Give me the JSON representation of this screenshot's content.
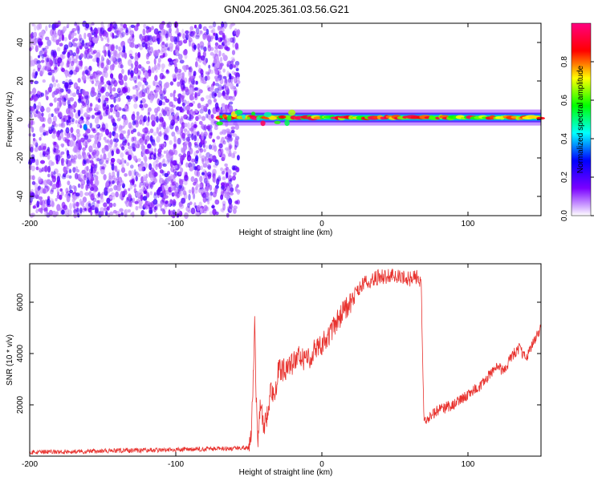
{
  "title": "GN04.2025.361.03.56.G21",
  "colors": {
    "snr_line": "#e8322e",
    "background": "#ffffff",
    "axis": "#000000"
  },
  "chart_data": [
    {
      "type": "heatmap",
      "name": "spectrogram",
      "xlabel": "Height of straight line (km)",
      "ylabel": "Frequency (Hz)",
      "xlim": [
        -200,
        150
      ],
      "ylim": [
        -50,
        50
      ],
      "xticks": [
        -200,
        -100,
        0,
        100
      ],
      "yticks": [
        -40,
        -20,
        0,
        20,
        40
      ],
      "noise_region_x": [
        -200,
        -57
      ],
      "signal_ridge_x": [
        -70,
        150
      ],
      "signal_ridge_frequency_hz": 1,
      "colorbar": {
        "label": "Normalized spectral amplitude",
        "range": [
          0,
          1
        ],
        "ticks": [
          0.0,
          0.2,
          0.4,
          0.6,
          0.8
        ],
        "colormap": [
          "#ffffff",
          "#7a00ff",
          "#0000ff",
          "#00ffff",
          "#00ff00",
          "#ffff00",
          "#ff0000",
          "#ff0080"
        ]
      }
    },
    {
      "type": "line",
      "name": "snr",
      "xlabel": "Height of straight line (km)",
      "ylabel": "SNR (10 * v/v)",
      "xlim": [
        -200,
        150
      ],
      "ylim": [
        0,
        7500
      ],
      "xticks": [
        -200,
        -100,
        0,
        100
      ],
      "yticks": [
        2000,
        4000,
        6000
      ],
      "series": [
        {
          "name": "SNR",
          "x": [
            -200,
            -150,
            -100,
            -60,
            -50,
            -48,
            -46,
            -45,
            -44,
            -42,
            -40,
            -38,
            -35,
            -32,
            -30,
            -25,
            -20,
            -15,
            -10,
            -5,
            0,
            5,
            10,
            15,
            20,
            25,
            30,
            40,
            50,
            60,
            65,
            68,
            69,
            70,
            72,
            75,
            80,
            90,
            100,
            110,
            115,
            120,
            125,
            130,
            135,
            140,
            145,
            150
          ],
          "y": [
            150,
            200,
            250,
            300,
            350,
            1200,
            5300,
            2500,
            600,
            2200,
            1000,
            1500,
            2600,
            2400,
            3300,
            3400,
            3600,
            3900,
            3700,
            4200,
            4400,
            4700,
            5200,
            5700,
            6000,
            6500,
            6800,
            7000,
            7000,
            6900,
            7000,
            6800,
            3500,
            1300,
            1400,
            1600,
            1800,
            2000,
            2400,
            2800,
            3200,
            3500,
            3300,
            3900,
            4200,
            3800,
            4500,
            5000
          ]
        }
      ]
    }
  ]
}
